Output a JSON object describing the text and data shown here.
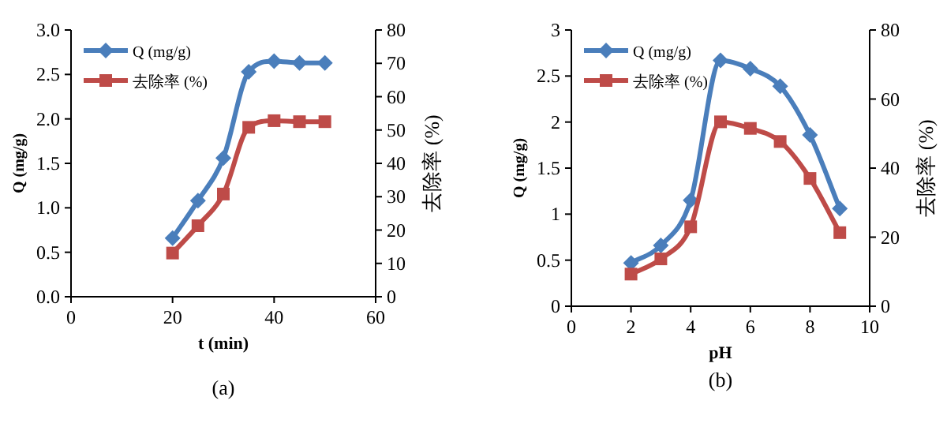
{
  "chart_data": [
    {
      "type": "line",
      "xlabel": "t (min)",
      "ylabel": "Q (mg/g)",
      "y2label": "去除率 (%)",
      "x": [
        20,
        25,
        30,
        35,
        40,
        45,
        50
      ],
      "xlim": [
        0,
        60
      ],
      "xticks": [
        0,
        20,
        40,
        60
      ],
      "ylim": [
        0,
        3
      ],
      "yticks": [
        {
          "value": 0,
          "label": "0.0"
        },
        0.5,
        {
          "value": 1,
          "label": "1.0"
        },
        1.5,
        {
          "value": 2,
          "label": "2.0"
        },
        2.5,
        {
          "value": 3,
          "label": "3.0"
        }
      ],
      "y2lim": [
        0,
        80
      ],
      "y2ticks": [
        0,
        10,
        20,
        30,
        40,
        50,
        60,
        70,
        80
      ],
      "series": [
        {
          "name": "Q (mg/g)",
          "color": "#4a7ebb",
          "marker": "diamond",
          "values": [
            0.66,
            1.08,
            1.56,
            2.53,
            2.65,
            2.63,
            2.63
          ]
        },
        {
          "name": "去除率 (%)",
          "color": "#be4b48",
          "marker": "square",
          "axis": "y2",
          "values": [
            13.1,
            21.3,
            30.8,
            50.8,
            52.8,
            52.5,
            52.5
          ]
        }
      ],
      "legend": "top left",
      "grid": false,
      "annotations": [
        "(a)"
      ]
    },
    {
      "type": "line",
      "xlabel": "pH",
      "ylabel": "Q (mg/g)",
      "y2label": "去除率 (%)",
      "x": [
        2,
        3,
        4,
        5,
        6,
        7,
        8,
        9
      ],
      "xlim": [
        0,
        10
      ],
      "xticks": [
        0,
        2,
        4,
        6,
        8,
        10
      ],
      "ylim": [
        0,
        3
      ],
      "yticks": [
        0,
        0.5,
        1,
        1.5,
        2,
        2.5,
        3
      ],
      "y2lim": [
        0,
        80
      ],
      "y2ticks": [
        0,
        20,
        40,
        60,
        80
      ],
      "series": [
        {
          "name": "Q (mg/g)",
          "color": "#4a7ebb",
          "marker": "diamond",
          "values": [
            0.47,
            0.66,
            1.15,
            2.67,
            2.58,
            2.39,
            1.86,
            1.06
          ]
        },
        {
          "name": "去除率 (%)",
          "color": "#be4b48",
          "marker": "square",
          "axis": "y2",
          "values": [
            9.3,
            13.7,
            23.0,
            53.4,
            51.5,
            47.7,
            37.0,
            21.3
          ]
        }
      ],
      "legend": "top left",
      "grid": false,
      "annotations": [
        "(b)"
      ]
    }
  ]
}
